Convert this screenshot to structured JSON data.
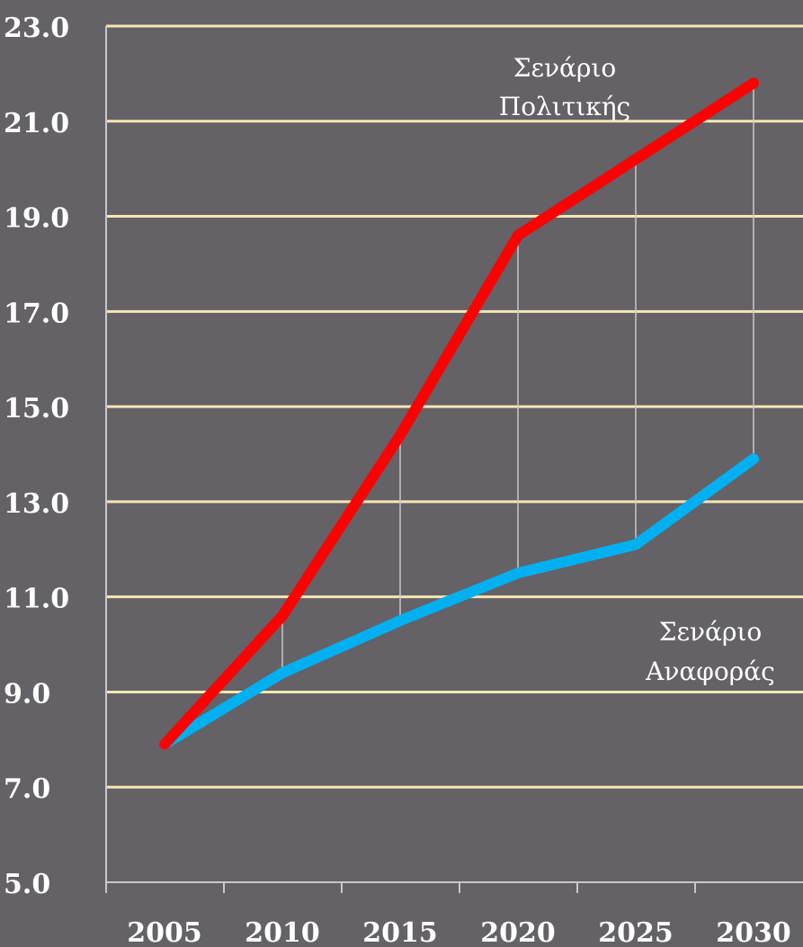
{
  "chart_data": {
    "type": "line",
    "title": "",
    "xlabel": "",
    "ylabel": "",
    "x": [
      "2005",
      "2010",
      "2015",
      "2020",
      "2025",
      "2030"
    ],
    "ylim": [
      5.0,
      23.0
    ],
    "yticks": [
      "5.0",
      "7.0",
      "9.0",
      "11.0",
      "13.0",
      "15.0",
      "17.0",
      "19.0",
      "21.0",
      "23.0"
    ],
    "grid": true,
    "series": [
      {
        "label_lines": [
          "Σενάριο",
          "Πολιτικής"
        ],
        "color": "#ff0000",
        "values": [
          7.9,
          10.6,
          14.4,
          18.6,
          20.2,
          21.8
        ]
      },
      {
        "label_lines": [
          "Σενάριο",
          "Αναφοράς"
        ],
        "color": "#00b0f0",
        "values": [
          7.9,
          9.4,
          10.5,
          11.5,
          12.1,
          13.9
        ]
      }
    ],
    "colors": {
      "background": "#646167",
      "gridline": "#f5e6b4",
      "axis": "#c8c8c8",
      "text": "#ffffff"
    }
  }
}
